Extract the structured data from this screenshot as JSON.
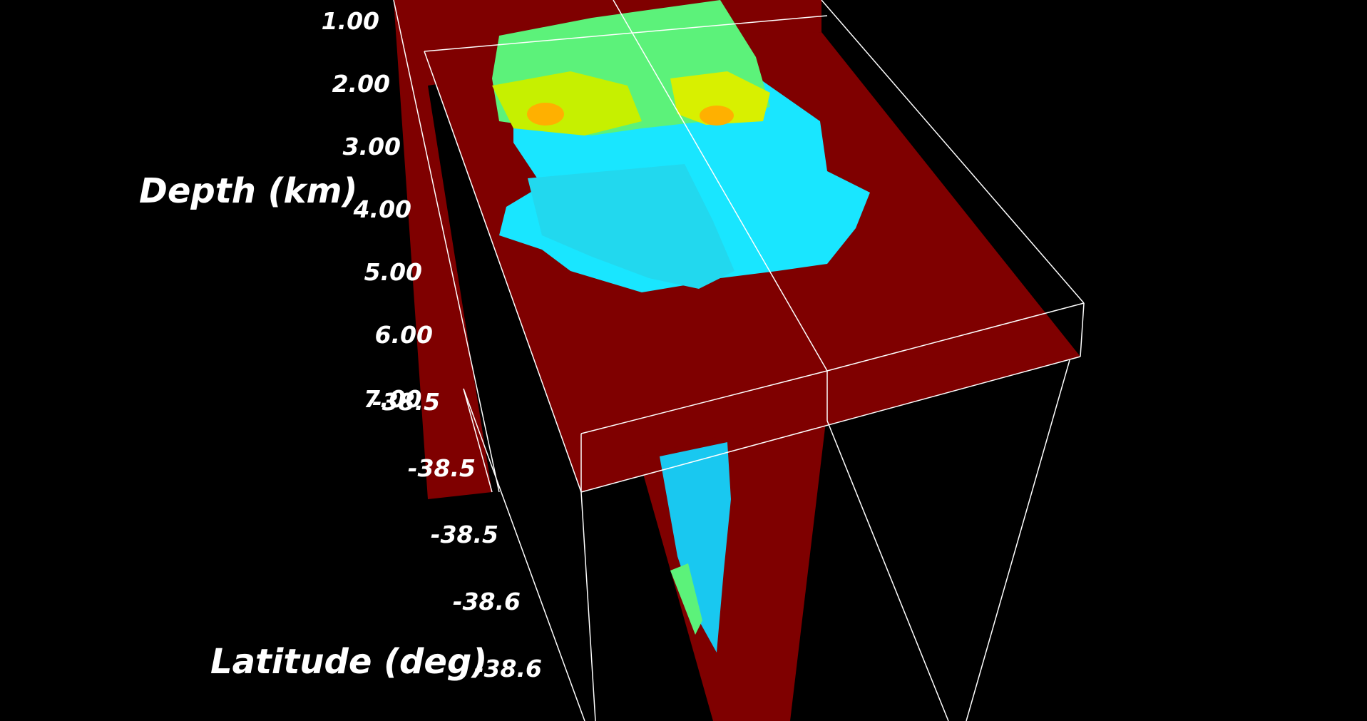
{
  "axes": {
    "depth": {
      "title": "Depth (km)",
      "ticks": [
        "1.00",
        "2.00",
        "3.00",
        "4.00",
        "5.00",
        "6.00",
        "7.00"
      ]
    },
    "latitude": {
      "title": "Latitude (deg)",
      "ticks": [
        "-38.5",
        "-38.5",
        "-38.5",
        "-38.6",
        "-38.6"
      ]
    }
  },
  "colors": {
    "background": "#000000",
    "slice_fill": "#7f0000",
    "anomaly_cyan": "#19e6ff",
    "anomaly_green": "#5cf27a",
    "anomaly_yellow": "#d8f000",
    "anomaly_orange": "#ffb000",
    "bounding_box": "#ffffff"
  }
}
